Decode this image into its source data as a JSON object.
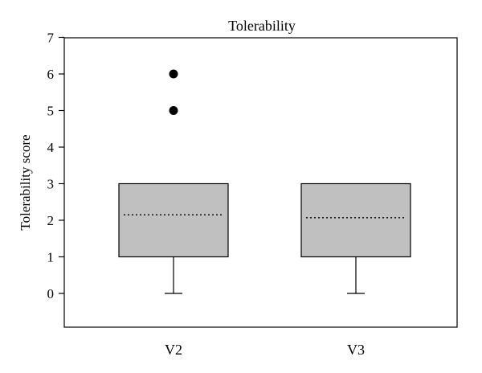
{
  "chart_data": {
    "type": "box",
    "title": "Tolerability",
    "ylabel": "Tolerability score",
    "xlabel": "",
    "ylim": [
      -0.9,
      7
    ],
    "yticks": [
      0,
      1,
      2,
      3,
      4,
      5,
      6,
      7
    ],
    "categories": [
      "V2",
      "V3"
    ],
    "boxes": [
      {
        "category": "V2",
        "whisker_low": 0,
        "q1": 1,
        "median": 1,
        "q3": 3,
        "whisker_high": 3,
        "mean": 2.15,
        "outliers": [
          5,
          6
        ]
      },
      {
        "category": "V3",
        "whisker_low": 0,
        "q1": 1,
        "median": 1,
        "q3": 3,
        "whisker_high": 3,
        "mean": 2.07,
        "outliers": []
      }
    ],
    "box_fill": "#c0c0c0",
    "grid": false
  }
}
